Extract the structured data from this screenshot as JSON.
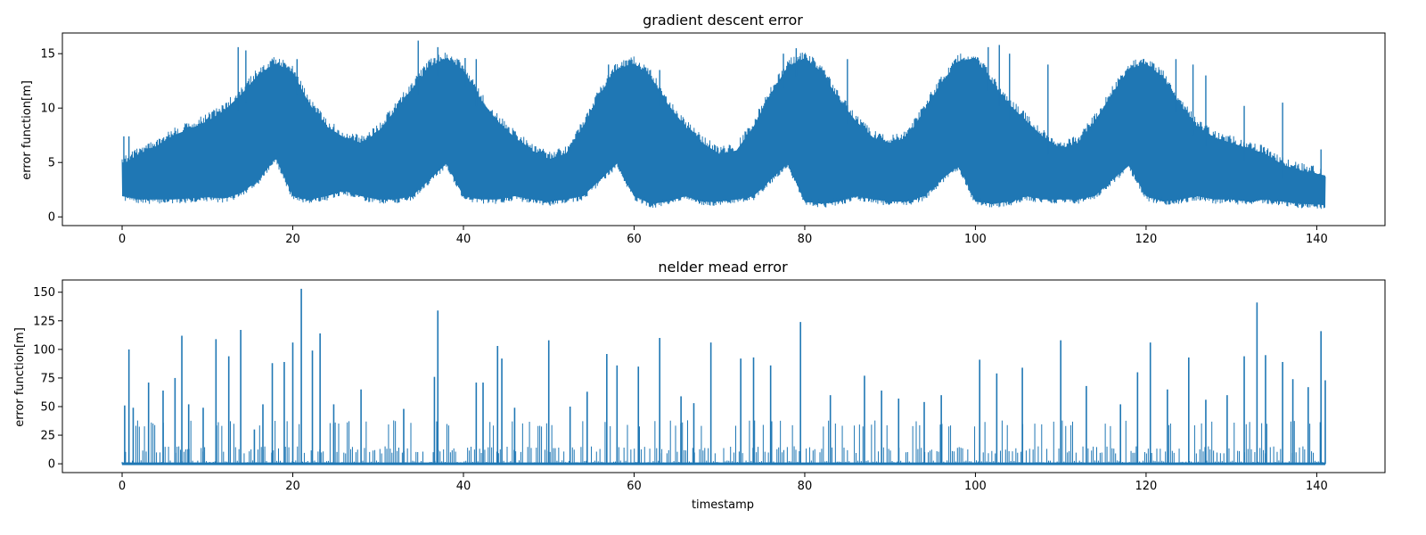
{
  "chart_data": [
    {
      "type": "line",
      "title": "gradient descent error",
      "xlabel": "",
      "ylabel": "error function[m]",
      "xlim": [
        -7,
        148
      ],
      "ylim": [
        -0.8,
        16.9
      ],
      "xticks": [
        0,
        20,
        40,
        60,
        80,
        100,
        120,
        140
      ],
      "yticks": [
        0,
        5,
        10,
        15
      ],
      "color": "#1f77b4",
      "envelope_period": 20.2,
      "upper_envelope": {
        "x": [
          0,
          2,
          4,
          6,
          8,
          10,
          12,
          14,
          16,
          18,
          20,
          22,
          24,
          26,
          28,
          30,
          32,
          34,
          36,
          38,
          40,
          42,
          44,
          46,
          48,
          50,
          52,
          54,
          56,
          58,
          60,
          62,
          64,
          66,
          68,
          70,
          72,
          74,
          76,
          78,
          80,
          82,
          84,
          86,
          88,
          90,
          92,
          94,
          96,
          98,
          100,
          102,
          104,
          106,
          108,
          110,
          112,
          114,
          116,
          118,
          120,
          122,
          124,
          126,
          128,
          130,
          132,
          134,
          136,
          138,
          141
        ],
        "y": [
          5.5,
          6.5,
          7.2,
          8.2,
          8.8,
          9.5,
          10.5,
          12.0,
          13.8,
          14.8,
          14.0,
          11.0,
          9.0,
          8.0,
          7.5,
          8.5,
          10.5,
          12.5,
          14.5,
          15.3,
          14.2,
          11.5,
          9.5,
          8.0,
          6.8,
          6.0,
          6.5,
          9.0,
          12.0,
          14.3,
          14.8,
          13.5,
          11.0,
          9.0,
          7.5,
          6.5,
          6.8,
          9.0,
          12.0,
          14.5,
          15.3,
          14.0,
          11.5,
          9.5,
          8.0,
          7.5,
          8.0,
          10.5,
          13.0,
          15.0,
          15.3,
          13.0,
          11.0,
          9.5,
          8.0,
          7.0,
          7.5,
          9.5,
          12.0,
          14.3,
          14.8,
          13.5,
          11.0,
          9.0,
          8.0,
          7.5,
          7.0,
          6.5,
          5.5,
          5.0,
          4.5
        ]
      },
      "lower_envelope": {
        "x": [
          0,
          2,
          4,
          6,
          8,
          10,
          12,
          14,
          16,
          18,
          20,
          22,
          24,
          26,
          28,
          30,
          32,
          34,
          36,
          38,
          40,
          42,
          44,
          46,
          48,
          50,
          52,
          54,
          56,
          58,
          60,
          62,
          64,
          66,
          68,
          70,
          72,
          74,
          76,
          78,
          80,
          82,
          84,
          86,
          88,
          90,
          92,
          94,
          96,
          98,
          100,
          102,
          104,
          106,
          108,
          110,
          112,
          114,
          116,
          118,
          120,
          122,
          124,
          126,
          128,
          130,
          132,
          134,
          136,
          138,
          141
        ],
        "y": [
          1.5,
          1.2,
          1.2,
          1.2,
          1.3,
          1.4,
          1.3,
          1.8,
          3.0,
          5.0,
          1.5,
          1.2,
          1.5,
          2.0,
          1.5,
          1.2,
          1.2,
          1.5,
          3.0,
          4.5,
          1.5,
          1.2,
          1.2,
          1.5,
          1.2,
          1.0,
          1.2,
          1.5,
          3.0,
          4.5,
          1.5,
          0.8,
          1.0,
          1.5,
          1.0,
          1.0,
          1.2,
          1.5,
          3.0,
          4.5,
          1.0,
          0.8,
          1.0,
          1.5,
          1.2,
          1.0,
          1.0,
          1.5,
          3.0,
          4.3,
          1.0,
          0.8,
          1.0,
          1.5,
          1.2,
          1.2,
          1.2,
          1.5,
          3.0,
          4.3,
          1.5,
          1.0,
          1.2,
          1.5,
          1.2,
          1.2,
          1.0,
          1.2,
          1.0,
          0.8,
          0.7
        ]
      },
      "spikes": [
        {
          "x": 0.2,
          "y": 7.4
        },
        {
          "x": 0.8,
          "y": 7.4
        },
        {
          "x": 13.6,
          "y": 15.6
        },
        {
          "x": 14.5,
          "y": 15.3
        },
        {
          "x": 20.5,
          "y": 14.5
        },
        {
          "x": 34.7,
          "y": 16.2
        },
        {
          "x": 37.0,
          "y": 15.6
        },
        {
          "x": 40.2,
          "y": 14.6
        },
        {
          "x": 41.5,
          "y": 14.5
        },
        {
          "x": 57.0,
          "y": 14.0
        },
        {
          "x": 63.0,
          "y": 13.5
        },
        {
          "x": 77.5,
          "y": 15.0
        },
        {
          "x": 79.0,
          "y": 15.5
        },
        {
          "x": 85.0,
          "y": 14.5
        },
        {
          "x": 101.5,
          "y": 15.6
        },
        {
          "x": 102.8,
          "y": 15.8
        },
        {
          "x": 104.0,
          "y": 15.0
        },
        {
          "x": 108.5,
          "y": 14.0
        },
        {
          "x": 123.5,
          "y": 14.5
        },
        {
          "x": 125.5,
          "y": 14.0
        },
        {
          "x": 127.0,
          "y": 13.0
        },
        {
          "x": 131.5,
          "y": 10.2
        },
        {
          "x": 136.0,
          "y": 10.5
        },
        {
          "x": 140.5,
          "y": 6.2
        }
      ]
    },
    {
      "type": "line",
      "title": "nelder mead error",
      "xlabel": "timestamp",
      "ylabel": "error function[m]",
      "xlim": [
        -7,
        148
      ],
      "ylim": [
        -7.7,
        160.7
      ],
      "xticks": [
        0,
        20,
        40,
        60,
        80,
        100,
        120,
        140
      ],
      "yticks": [
        0,
        25,
        50,
        75,
        100,
        125,
        150
      ],
      "color": "#1f77b4",
      "spikes": [
        {
          "x": 0.3,
          "y": 51
        },
        {
          "x": 0.8,
          "y": 100
        },
        {
          "x": 1.3,
          "y": 49
        },
        {
          "x": 3.1,
          "y": 71
        },
        {
          "x": 4.8,
          "y": 64
        },
        {
          "x": 6.2,
          "y": 75
        },
        {
          "x": 7.0,
          "y": 112
        },
        {
          "x": 7.8,
          "y": 52
        },
        {
          "x": 9.5,
          "y": 49
        },
        {
          "x": 11.0,
          "y": 109
        },
        {
          "x": 12.5,
          "y": 94
        },
        {
          "x": 13.9,
          "y": 117
        },
        {
          "x": 15.5,
          "y": 30
        },
        {
          "x": 16.5,
          "y": 52
        },
        {
          "x": 17.6,
          "y": 88
        },
        {
          "x": 19.0,
          "y": 89
        },
        {
          "x": 20.0,
          "y": 106
        },
        {
          "x": 21.0,
          "y": 153
        },
        {
          "x": 22.3,
          "y": 99
        },
        {
          "x": 23.2,
          "y": 114
        },
        {
          "x": 24.8,
          "y": 52
        },
        {
          "x": 28.0,
          "y": 65
        },
        {
          "x": 33.0,
          "y": 48
        },
        {
          "x": 36.6,
          "y": 76
        },
        {
          "x": 37.0,
          "y": 134
        },
        {
          "x": 41.5,
          "y": 71
        },
        {
          "x": 42.3,
          "y": 71
        },
        {
          "x": 44.0,
          "y": 103
        },
        {
          "x": 44.5,
          "y": 92
        },
        {
          "x": 46.0,
          "y": 49
        },
        {
          "x": 50.0,
          "y": 108
        },
        {
          "x": 52.5,
          "y": 50
        },
        {
          "x": 54.5,
          "y": 63
        },
        {
          "x": 56.8,
          "y": 96
        },
        {
          "x": 58.0,
          "y": 86
        },
        {
          "x": 60.5,
          "y": 85
        },
        {
          "x": 63.0,
          "y": 110
        },
        {
          "x": 65.5,
          "y": 59
        },
        {
          "x": 67.0,
          "y": 53
        },
        {
          "x": 69.0,
          "y": 106
        },
        {
          "x": 72.5,
          "y": 92
        },
        {
          "x": 74.0,
          "y": 93
        },
        {
          "x": 76.0,
          "y": 86
        },
        {
          "x": 79.5,
          "y": 124
        },
        {
          "x": 83.0,
          "y": 60
        },
        {
          "x": 87.0,
          "y": 77
        },
        {
          "x": 89.0,
          "y": 64
        },
        {
          "x": 91.0,
          "y": 57
        },
        {
          "x": 94.0,
          "y": 54
        },
        {
          "x": 96.0,
          "y": 60
        },
        {
          "x": 100.5,
          "y": 91
        },
        {
          "x": 102.5,
          "y": 79
        },
        {
          "x": 105.5,
          "y": 84
        },
        {
          "x": 110.0,
          "y": 108
        },
        {
          "x": 113.0,
          "y": 68
        },
        {
          "x": 117.0,
          "y": 52
        },
        {
          "x": 119.0,
          "y": 80
        },
        {
          "x": 120.5,
          "y": 106
        },
        {
          "x": 122.5,
          "y": 65
        },
        {
          "x": 125.0,
          "y": 93
        },
        {
          "x": 127.0,
          "y": 56
        },
        {
          "x": 129.5,
          "y": 60
        },
        {
          "x": 131.5,
          "y": 94
        },
        {
          "x": 133.0,
          "y": 141
        },
        {
          "x": 134.0,
          "y": 95
        },
        {
          "x": 136.0,
          "y": 89
        },
        {
          "x": 137.2,
          "y": 74
        },
        {
          "x": 139.0,
          "y": 67
        },
        {
          "x": 140.5,
          "y": 116
        },
        {
          "x": 141.0,
          "y": 73
        }
      ]
    }
  ]
}
